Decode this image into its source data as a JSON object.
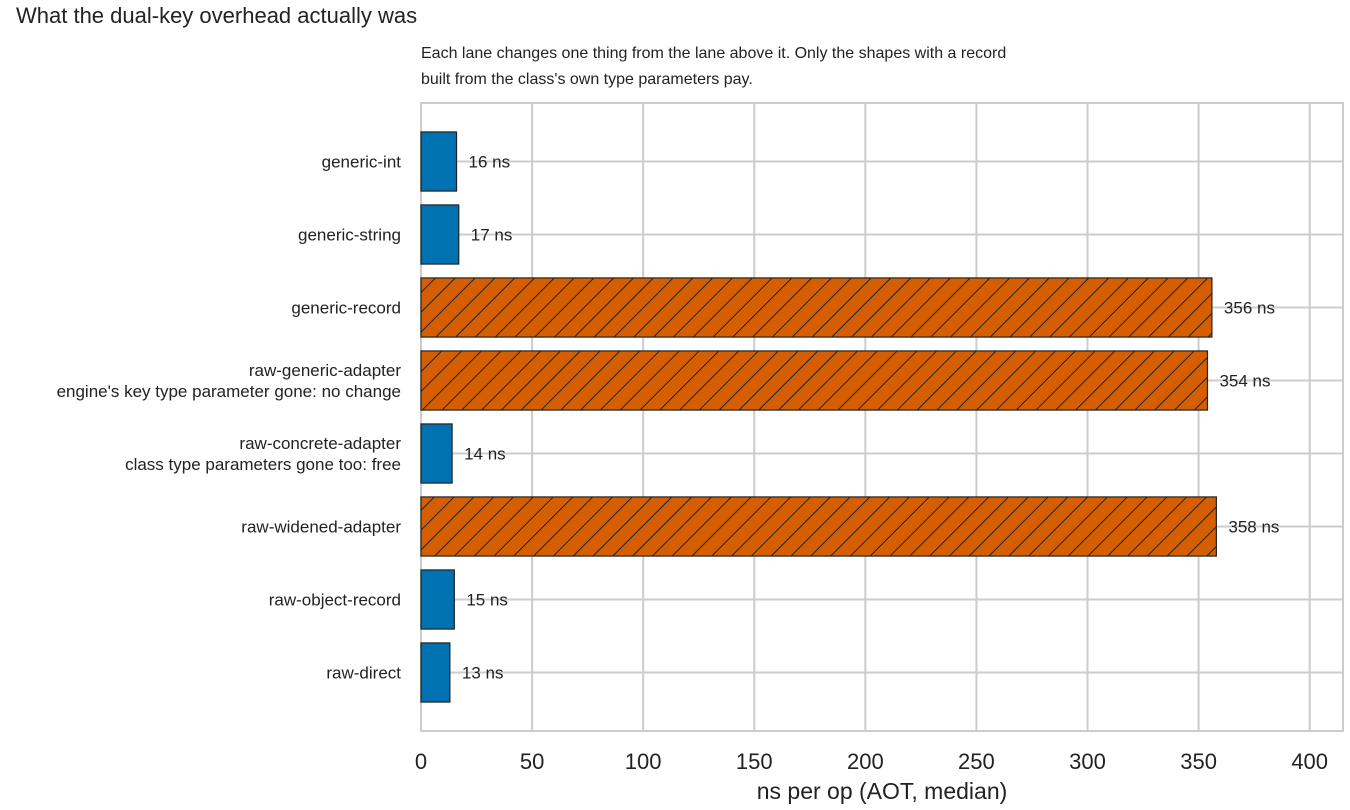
{
  "title": "What the dual-key overhead actually was",
  "subtitle": [
    "Each lane changes one thing from the lane above it. Only the shapes with a record",
    "built from the class's own type parameters pay."
  ],
  "colors": {
    "fast": "#0072b2",
    "slow": "#d55e00",
    "grid": "#cccccc",
    "edge": "#222222"
  },
  "chart_data": {
    "type": "bar",
    "orientation": "horizontal",
    "categories": [
      [
        "generic-int"
      ],
      [
        "generic-string"
      ],
      [
        "generic-record"
      ],
      [
        "raw-generic-adapter",
        "engine's key type parameter gone: no change"
      ],
      [
        "raw-concrete-adapter",
        "class type parameters gone too: free"
      ],
      [
        "raw-widened-adapter"
      ],
      [
        "raw-object-record"
      ],
      [
        "raw-direct"
      ]
    ],
    "values": [
      16,
      17,
      356,
      354,
      14,
      358,
      15,
      13
    ],
    "data_labels": [
      "16 ns",
      "17 ns",
      "356 ns",
      "354 ns",
      "14 ns",
      "358 ns",
      "15 ns",
      "13 ns"
    ],
    "pays": [
      false,
      false,
      true,
      true,
      false,
      true,
      false,
      false
    ],
    "xlabel": "ns per op (AOT, median)",
    "ylabel": "",
    "xlim": [
      0,
      415
    ],
    "xticks": [
      0,
      50,
      100,
      150,
      200,
      250,
      300,
      350,
      400
    ],
    "grid": true,
    "legend": "none"
  }
}
